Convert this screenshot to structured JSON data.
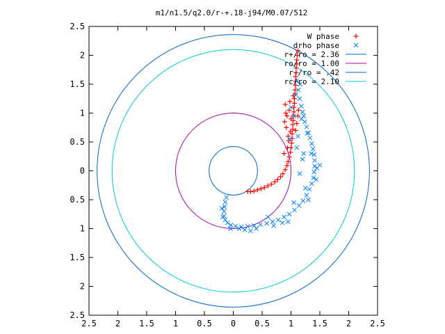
{
  "chart_data": {
    "type": "scatter",
    "title": "m1/n1.5/q2.0/r-+.18-j94/M0.07/512",
    "xlim": [
      -2.5,
      2.5
    ],
    "ylim": [
      -2.5,
      2.5
    ],
    "x_ticks": [
      "2.5",
      "2",
      "1.5",
      "1",
      "0.5",
      "0",
      "0.5",
      "1",
      "1.5",
      "2",
      "2.5"
    ],
    "y_ticks": [
      "2.5",
      "2",
      "1.5",
      "1",
      "0.5",
      "0",
      "0.5",
      "1",
      "1.5",
      "2",
      "2.5"
    ],
    "tick_values": [
      -2.5,
      -2,
      -1.5,
      -1,
      -0.5,
      0,
      0.5,
      1,
      1.5,
      2,
      2.5
    ],
    "grid": false,
    "legend_position": "top-right",
    "series": [
      {
        "name": "W phase",
        "marker": "+",
        "color": "#ff0000",
        "points": [
          [
            1.12,
            2.08
          ],
          [
            1.11,
            2.0
          ],
          [
            1.1,
            1.92
          ],
          [
            1.1,
            1.85
          ],
          [
            1.09,
            1.78
          ],
          [
            1.09,
            1.7
          ],
          [
            1.08,
            1.63
          ],
          [
            1.08,
            1.55
          ],
          [
            1.08,
            1.48
          ],
          [
            1.07,
            1.4
          ],
          [
            1.07,
            1.33
          ],
          [
            1.06,
            1.25
          ],
          [
            1.06,
            1.17
          ],
          [
            1.05,
            1.1
          ],
          [
            1.05,
            1.02
          ],
          [
            1.04,
            0.95
          ],
          [
            1.04,
            0.87
          ],
          [
            1.03,
            0.8
          ],
          [
            1.03,
            0.72
          ],
          [
            1.02,
            0.64
          ],
          [
            1.02,
            0.56
          ],
          [
            1.01,
            0.48
          ],
          [
            1.0,
            0.4
          ],
          [
            0.99,
            0.32
          ],
          [
            0.97,
            0.24
          ],
          [
            0.95,
            0.16
          ],
          [
            0.93,
            0.09
          ],
          [
            0.9,
            0.02
          ],
          [
            0.86,
            -0.05
          ],
          [
            0.82,
            -0.1
          ],
          [
            0.77,
            -0.15
          ],
          [
            0.72,
            -0.19
          ],
          [
            0.66,
            -0.23
          ],
          [
            0.6,
            -0.26
          ],
          [
            0.54,
            -0.29
          ],
          [
            0.48,
            -0.31
          ],
          [
            0.42,
            -0.33
          ],
          [
            0.36,
            -0.35
          ],
          [
            0.3,
            -0.36
          ],
          [
            0.25,
            -0.36
          ],
          [
            0.9,
            1.15
          ],
          [
            0.93,
            0.95
          ],
          [
            0.97,
            1.05
          ],
          [
            0.92,
            0.75
          ],
          [
            1.12,
            0.95
          ],
          [
            0.95,
            0.6
          ],
          [
            1.1,
            0.82
          ],
          [
            0.98,
            1.2
          ],
          [
            0.94,
            0.4
          ],
          [
            1.08,
            0.7
          ],
          [
            0.88,
            0.3
          ],
          [
            1.0,
            0.9
          ],
          [
            0.91,
            1.0
          ],
          [
            1.04,
            1.3
          ],
          [
            0.96,
            0.52
          ],
          [
            1.13,
            1.05
          ],
          [
            0.99,
            0.68
          ],
          [
            0.89,
            0.85
          ]
        ]
      },
      {
        "name": "drho phase",
        "marker": "x",
        "color": "#0080ff",
        "points": [
          [
            1.1,
            1.55
          ],
          [
            1.13,
            1.4
          ],
          [
            1.15,
            1.25
          ],
          [
            1.18,
            1.12
          ],
          [
            1.2,
            1.02
          ],
          [
            1.22,
            0.95
          ],
          [
            1.24,
            0.85
          ],
          [
            1.27,
            0.76
          ],
          [
            1.3,
            0.66
          ],
          [
            1.33,
            0.57
          ],
          [
            1.36,
            0.47
          ],
          [
            1.38,
            0.38
          ],
          [
            1.4,
            0.28
          ],
          [
            1.41,
            0.18
          ],
          [
            1.41,
            0.08
          ],
          [
            1.4,
            -0.02
          ],
          [
            1.39,
            -0.12
          ],
          [
            1.36,
            -0.22
          ],
          [
            1.32,
            -0.32
          ],
          [
            1.27,
            -0.42
          ],
          [
            1.21,
            -0.52
          ],
          [
            1.14,
            -0.6
          ],
          [
            1.06,
            -0.68
          ],
          [
            0.97,
            -0.75
          ],
          [
            0.88,
            -0.8
          ],
          [
            0.78,
            -0.85
          ],
          [
            0.68,
            -0.88
          ],
          [
            0.58,
            -0.91
          ],
          [
            0.47,
            -0.93
          ],
          [
            0.36,
            -0.95
          ],
          [
            0.25,
            -0.96
          ],
          [
            0.14,
            -0.97
          ],
          [
            0.04,
            -0.96
          ],
          [
            -0.04,
            -0.94
          ],
          [
            -0.1,
            -0.9
          ],
          [
            -0.14,
            -0.85
          ],
          [
            -0.16,
            -0.78
          ],
          [
            -0.16,
            -0.7
          ],
          [
            -0.15,
            -0.62
          ],
          [
            -0.14,
            -0.54
          ],
          [
            -0.12,
            -0.46
          ],
          [
            1.0,
            1.1
          ],
          [
            1.05,
            0.95
          ],
          [
            0.98,
            0.55
          ],
          [
            1.12,
            0.6
          ],
          [
            1.22,
            0.3
          ],
          [
            1.15,
            -0.05
          ],
          [
            1.25,
            -0.3
          ],
          [
            1.45,
            0.05
          ],
          [
            1.5,
            0.1
          ],
          [
            1.05,
            -0.55
          ],
          [
            0.85,
            -0.9
          ],
          [
            0.6,
            -0.8
          ],
          [
            0.4,
            -1.0
          ],
          [
            0.2,
            -1.02
          ],
          [
            -0.05,
            -1.0
          ],
          [
            -0.18,
            -0.8
          ],
          [
            -0.2,
            -0.65
          ],
          [
            1.35,
            0.3
          ],
          [
            1.28,
            0.65
          ],
          [
            1.18,
            0.9
          ],
          [
            1.08,
            1.32
          ],
          [
            1.16,
            1.5
          ],
          [
            1.44,
            -0.15
          ],
          [
            1.3,
            -0.5
          ],
          [
            0.95,
            -0.88
          ],
          [
            0.7,
            -0.95
          ],
          [
            0.3,
            -1.04
          ],
          [
            0.1,
            -1.0
          ],
          [
            1.2,
            0.2
          ],
          [
            1.1,
            0.4
          ]
        ]
      }
    ],
    "circles": [
      {
        "label": "r+/ro = 2.36",
        "r": 2.36,
        "color": "#0066cc"
      },
      {
        "label": "ro/ro = 1.00",
        "r": 1.0,
        "color": "#aa00aa"
      },
      {
        "label": "r-/ro = .42",
        "r": 0.42,
        "color": "#0066cc"
      },
      {
        "label": "rc/ro = 2.10",
        "r": 2.1,
        "color": "#00c8d8"
      }
    ]
  }
}
